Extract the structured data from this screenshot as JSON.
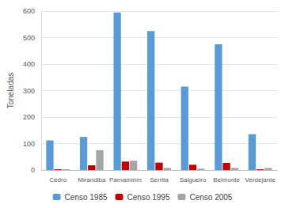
{
  "chart_data": {
    "type": "bar",
    "y_label": "Toneladas",
    "categories": [
      "Cedro",
      "Mirandiba",
      "Parnamirim",
      "Serrita",
      "Salgueiro",
      "Belmonte",
      "Verdejante"
    ],
    "series": [
      {
        "name": "Censo 1985",
        "color": "#5b9bd5",
        "values": [
          112,
          125,
          595,
          525,
          315,
          475,
          135
        ]
      },
      {
        "name": "Censo 1995",
        "color": "#c00000",
        "values": [
          3,
          18,
          32,
          28,
          20,
          27,
          3
        ]
      },
      {
        "name": "Censo 2005",
        "color": "#a5a5a5",
        "values": [
          3,
          75,
          35,
          8,
          5,
          8,
          8
        ]
      }
    ],
    "ylim": [
      0,
      600
    ],
    "yticks": [
      0,
      100,
      200,
      300,
      400,
      500,
      600
    ],
    "grid": true,
    "legend": "bottom"
  }
}
